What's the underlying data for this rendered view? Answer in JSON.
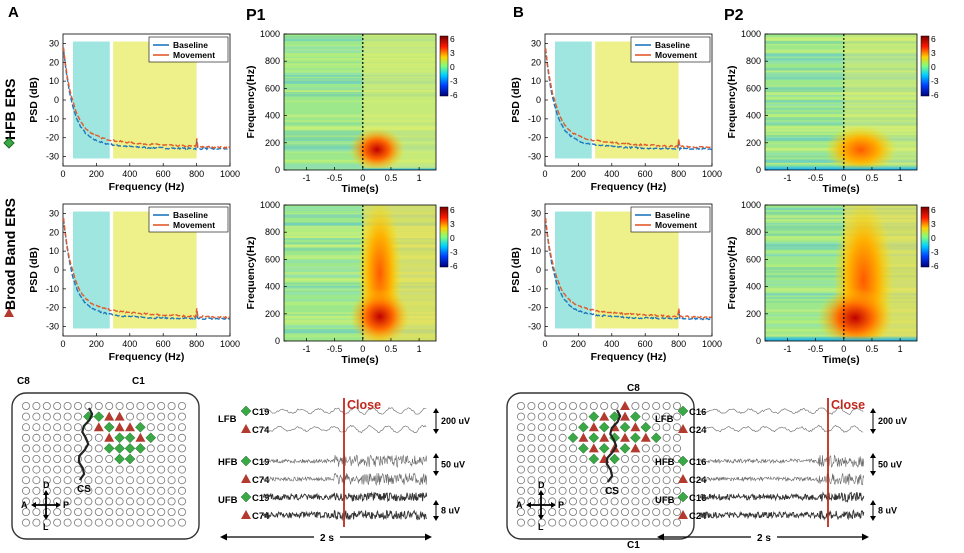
{
  "panels": {
    "A": {
      "letter": "A",
      "participant": "P1"
    },
    "B": {
      "letter": "B",
      "participant": "P2"
    }
  },
  "row_labels": {
    "top": "HFB ERS",
    "bottom": "Broad Band ERS"
  },
  "psd_plot": {
    "ylabel": "PSD (dB)",
    "xlabel": "Frequency (Hz)",
    "yticks": [
      "30",
      "20",
      "10",
      "0",
      "-10",
      "-20",
      "-30"
    ],
    "xticks": [
      "0",
      "200",
      "400",
      "600",
      "800",
      "1000"
    ],
    "legend": [
      "Baseline",
      "Movement"
    ]
  },
  "spectrogram": {
    "ylabel": "Frequency(Hz)",
    "xlabel": "Time(s)",
    "yticks": [
      "1000",
      "800",
      "600",
      "400",
      "200",
      "0"
    ],
    "xticks": [
      "-1",
      "-0.5",
      "0",
      "0.5",
      "1"
    ],
    "colorbar": [
      "6",
      "3",
      "0",
      "-3",
      "-6"
    ]
  },
  "traces": {
    "close_label": "Close",
    "bands": [
      "LFB",
      "HFB",
      "UFB"
    ],
    "p1_channels": [
      "C19",
      "C74"
    ],
    "p2_channels": [
      "C16",
      "C24"
    ],
    "scales": [
      "200 uV",
      "50 uV",
      "8 uV"
    ],
    "time_scale": "2 s"
  },
  "grid": {
    "c8": "C8",
    "c1": "C1",
    "cs": "CS",
    "dirs": {
      "d": "D",
      "l": "L",
      "a": "A",
      "p": "P"
    }
  },
  "colors": {
    "baseline": "#1f77bd",
    "movement": "#e05a2b",
    "cyan": "#9fe6e0",
    "yellow": "#eef08a",
    "green": "#39a845",
    "red": "#b23a2e",
    "close": "#c0281d"
  }
}
